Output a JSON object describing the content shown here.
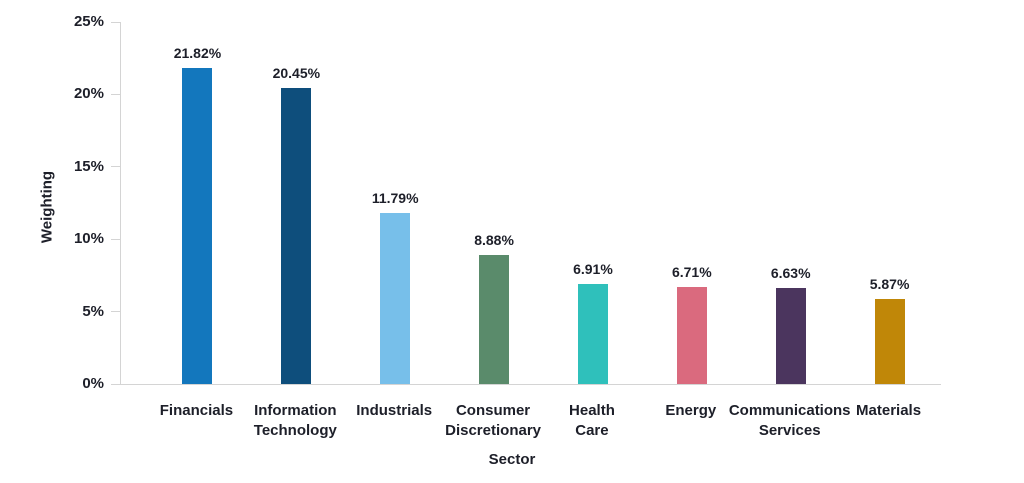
{
  "chart_data": {
    "type": "bar",
    "title": "",
    "xlabel": "Sector",
    "ylabel": "Weighting",
    "ylim": [
      0,
      25
    ],
    "grid": false,
    "legend": false,
    "background_color": "#ffffff",
    "axis_color": "#d4d4d4",
    "text_color": "#1d1f29",
    "yticks": [
      {
        "value": 0,
        "label": "0%"
      },
      {
        "value": 5,
        "label": "5%"
      },
      {
        "value": 10,
        "label": "10%"
      },
      {
        "value": 15,
        "label": "15%"
      },
      {
        "value": 20,
        "label": "20%"
      },
      {
        "value": 25,
        "label": "25%"
      }
    ],
    "categories": [
      "Financials",
      "Information\nTechnology",
      "Industrials",
      "Consumer\nDiscretionary",
      "Health\nCare",
      "Energy",
      "Communications\nServices",
      "Materials"
    ],
    "values": [
      21.82,
      20.45,
      11.79,
      8.88,
      6.91,
      6.71,
      6.63,
      5.87
    ],
    "value_labels": [
      "21.82%",
      "20.45%",
      "11.79%",
      "8.88%",
      "6.91%",
      "6.71%",
      "6.63%",
      "5.87%"
    ],
    "bar_colors": [
      "#1377bd",
      "#0e4e7c",
      "#77bfea",
      "#5a8b6b",
      "#2fc0bb",
      "#da6a7e",
      "#4b355e",
      "#c08708"
    ]
  }
}
